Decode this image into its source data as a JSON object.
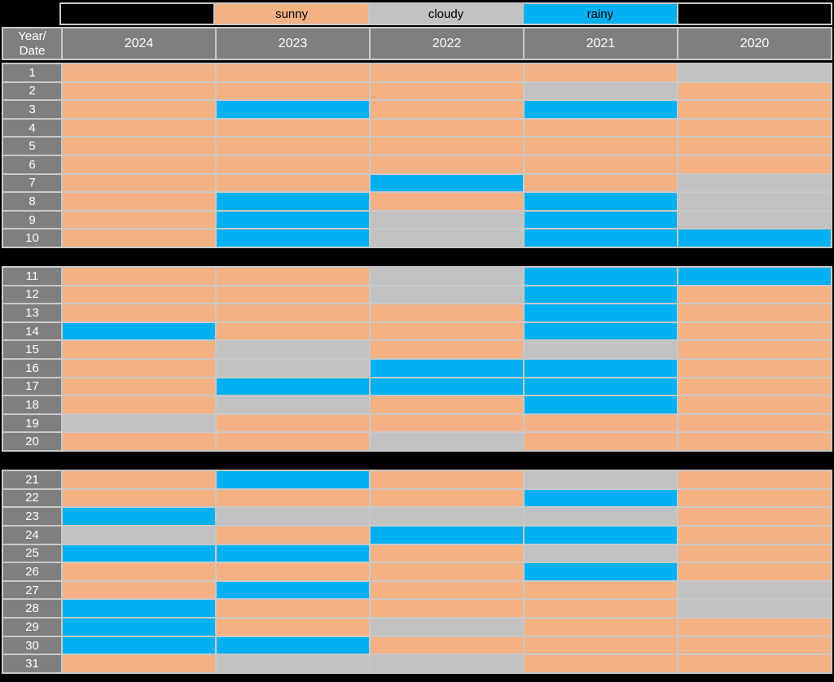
{
  "colors": {
    "sunny": "#F4B183",
    "cloudy": "#C2C2C2",
    "rainy": "#00B0F0",
    "header_bg": "#7F7F7F",
    "header_text": "#FFFFFF",
    "legend_text": "#000000",
    "background": "#000000",
    "cell_border": "#C9C9C9"
  },
  "legend": {
    "items": [
      {
        "label": "sunny",
        "key": "sunny"
      },
      {
        "label": "cloudy",
        "key": "cloudy"
      },
      {
        "label": "rainy",
        "key": "rainy"
      }
    ]
  },
  "header": {
    "corner_line1": "Year/",
    "corner_line2": "Date",
    "years": [
      "2024",
      "2023",
      "2022",
      "2021",
      "2020"
    ]
  },
  "chart_data": {
    "type": "table",
    "title": "",
    "description": "Daily weather condition (sunny / cloudy / rainy) for dates 1-31 across years 2024-2020",
    "row_header": "Year/Date",
    "columns": [
      "2024",
      "2023",
      "2022",
      "2021",
      "2020"
    ],
    "legend": [
      "sunny",
      "cloudy",
      "rainy"
    ],
    "blocks": [
      [
        1,
        10
      ],
      [
        11,
        20
      ],
      [
        21,
        31
      ]
    ],
    "rows": [
      {
        "date": "1",
        "values": [
          "sunny",
          "sunny",
          "sunny",
          "sunny",
          "cloudy"
        ]
      },
      {
        "date": "2",
        "values": [
          "sunny",
          "sunny",
          "sunny",
          "cloudy",
          "sunny"
        ]
      },
      {
        "date": "3",
        "values": [
          "sunny",
          "rainy",
          "sunny",
          "rainy",
          "sunny"
        ]
      },
      {
        "date": "4",
        "values": [
          "sunny",
          "sunny",
          "sunny",
          "sunny",
          "sunny"
        ]
      },
      {
        "date": "5",
        "values": [
          "sunny",
          "sunny",
          "sunny",
          "sunny",
          "sunny"
        ]
      },
      {
        "date": "6",
        "values": [
          "sunny",
          "sunny",
          "sunny",
          "sunny",
          "sunny"
        ]
      },
      {
        "date": "7",
        "values": [
          "sunny",
          "sunny",
          "rainy",
          "sunny",
          "cloudy"
        ]
      },
      {
        "date": "8",
        "values": [
          "sunny",
          "rainy",
          "sunny",
          "rainy",
          "cloudy"
        ]
      },
      {
        "date": "9",
        "values": [
          "sunny",
          "rainy",
          "cloudy",
          "rainy",
          "cloudy"
        ]
      },
      {
        "date": "10",
        "values": [
          "sunny",
          "rainy",
          "cloudy",
          "rainy",
          "rainy"
        ]
      },
      {
        "date": "11",
        "values": [
          "sunny",
          "sunny",
          "cloudy",
          "rainy",
          "rainy"
        ]
      },
      {
        "date": "12",
        "values": [
          "sunny",
          "sunny",
          "cloudy",
          "rainy",
          "sunny"
        ]
      },
      {
        "date": "13",
        "values": [
          "sunny",
          "sunny",
          "sunny",
          "rainy",
          "sunny"
        ]
      },
      {
        "date": "14",
        "values": [
          "rainy",
          "sunny",
          "sunny",
          "rainy",
          "sunny"
        ]
      },
      {
        "date": "15",
        "values": [
          "sunny",
          "cloudy",
          "sunny",
          "cloudy",
          "sunny"
        ]
      },
      {
        "date": "16",
        "values": [
          "sunny",
          "cloudy",
          "rainy",
          "rainy",
          "sunny"
        ]
      },
      {
        "date": "17",
        "values": [
          "sunny",
          "rainy",
          "rainy",
          "rainy",
          "sunny"
        ]
      },
      {
        "date": "18",
        "values": [
          "sunny",
          "cloudy",
          "sunny",
          "rainy",
          "sunny"
        ]
      },
      {
        "date": "19",
        "values": [
          "cloudy",
          "sunny",
          "sunny",
          "sunny",
          "sunny"
        ]
      },
      {
        "date": "20",
        "values": [
          "sunny",
          "sunny",
          "cloudy",
          "sunny",
          "sunny"
        ]
      },
      {
        "date": "21",
        "values": [
          "sunny",
          "rainy",
          "sunny",
          "cloudy",
          "sunny"
        ]
      },
      {
        "date": "22",
        "values": [
          "sunny",
          "sunny",
          "sunny",
          "rainy",
          "sunny"
        ]
      },
      {
        "date": "23",
        "values": [
          "rainy",
          "cloudy",
          "cloudy",
          "cloudy",
          "sunny"
        ]
      },
      {
        "date": "24",
        "values": [
          "cloudy",
          "sunny",
          "rainy",
          "rainy",
          "sunny"
        ]
      },
      {
        "date": "25",
        "values": [
          "rainy",
          "rainy",
          "sunny",
          "cloudy",
          "sunny"
        ]
      },
      {
        "date": "26",
        "values": [
          "sunny",
          "sunny",
          "sunny",
          "rainy",
          "sunny"
        ]
      },
      {
        "date": "27",
        "values": [
          "sunny",
          "rainy",
          "sunny",
          "sunny",
          "cloudy"
        ]
      },
      {
        "date": "28",
        "values": [
          "rainy",
          "sunny",
          "sunny",
          "sunny",
          "cloudy"
        ]
      },
      {
        "date": "29",
        "values": [
          "rainy",
          "sunny",
          "cloudy",
          "sunny",
          "sunny"
        ]
      },
      {
        "date": "30",
        "values": [
          "rainy",
          "rainy",
          "sunny",
          "sunny",
          "sunny"
        ]
      },
      {
        "date": "31",
        "values": [
          "sunny",
          "cloudy",
          "cloudy",
          "sunny",
          "sunny"
        ]
      }
    ]
  }
}
